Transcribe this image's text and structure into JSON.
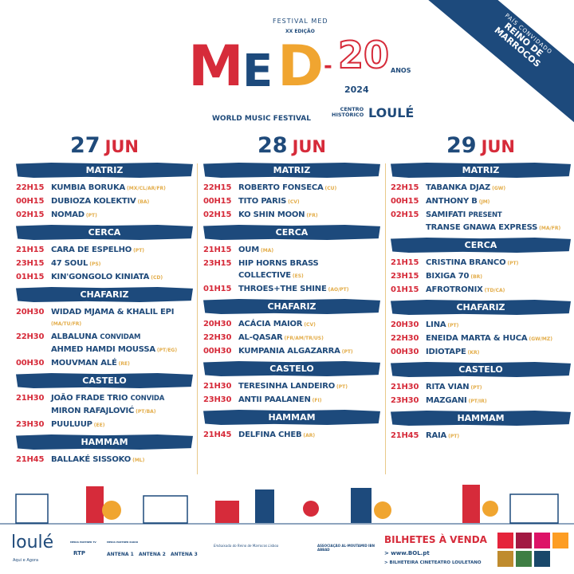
{
  "header": {
    "festival_small": "FESTIVAL MED",
    "edition": "XX EDIÇÃO",
    "logo_letters": [
      "M",
      "E",
      "D"
    ],
    "logo_dash": "-",
    "subtitle": "WORLD MUSIC FESTIVAL",
    "anniversary": "20",
    "anos": "ANOS",
    "year": "2024",
    "centro": "CENTRO",
    "historico": "HISTÓRICO",
    "city": "LOULÉ"
  },
  "ribbon": {
    "label": "PAÍS CONVIDADO",
    "line1": "REINO DE",
    "line2": "MARROCOS"
  },
  "colors": {
    "navy": "#1d4a7c",
    "red": "#d62b3a",
    "orange": "#f0a530",
    "country": "#e3ad4a"
  },
  "days": [
    {
      "num": "27",
      "month": "JUN",
      "venues": [
        {
          "name": "MATRIZ",
          "acts": [
            {
              "time": "22H15",
              "artist": "KUMBIA BORUKA",
              "country": "(MX/CL/AR/FR)"
            },
            {
              "time": "00H15",
              "artist": "DUBIOZA KOLEKTIV",
              "country": "(BA)"
            },
            {
              "time": "02H15",
              "artist": "NOMAD",
              "country": "(PT)"
            }
          ]
        },
        {
          "name": "CERCA",
          "acts": [
            {
              "time": "21H15",
              "artist": "CARA DE ESPELHO",
              "country": "(PT)"
            },
            {
              "time": "23H15",
              "artist": "47 SOUL",
              "country": "(PS)"
            },
            {
              "time": "01H15",
              "artist": "KIN'GONGOLO KINIATA",
              "country": "(CD)"
            }
          ]
        },
        {
          "name": "CHAFARIZ",
          "acts": [
            {
              "time": "20H30",
              "artist": "WIDAD MJAMA & KHALIL EPI",
              "country": "(MA/TU/FR)"
            },
            {
              "time": "22H30",
              "artist": "ALBALUNA",
              "connector": "CONVIDAM",
              "artist2": "AHMED HAMDI MOUSSA",
              "country": "(PT/EG)"
            },
            {
              "time": "00H30",
              "artist": "MOUVMAN ALÉ",
              "country": "(RE)"
            }
          ]
        },
        {
          "name": "CASTELO",
          "acts": [
            {
              "time": "21H30",
              "artist": "JOÃO FRADE TRIO",
              "connector": "CONVIDA",
              "artist2": "MIRON RAFAJLOVIĆ",
              "country": "(PT/BA)"
            },
            {
              "time": "23H30",
              "artist": "PUULUUP",
              "country": "(EE)"
            }
          ]
        },
        {
          "name": "HAMMAM",
          "acts": [
            {
              "time": "21H45",
              "artist": "BALLAKÉ SISSOKO",
              "country": "(ML)"
            }
          ]
        }
      ]
    },
    {
      "num": "28",
      "month": "JUN",
      "venues": [
        {
          "name": "MATRIZ",
          "acts": [
            {
              "time": "22H15",
              "artist": "ROBERTO FONSECA",
              "country": "(CU)"
            },
            {
              "time": "00H15",
              "artist": "TITO PARIS",
              "country": "(CV)"
            },
            {
              "time": "02H15",
              "artist": "KO SHIN MOON",
              "country": "(FR)"
            }
          ]
        },
        {
          "name": "CERCA",
          "acts": [
            {
              "time": "21H15",
              "artist": "OUM",
              "country": "(MA)"
            },
            {
              "time": "23H15",
              "artist": "HIP HORNS BRASS",
              "artist2": "COLLECTIVE",
              "country": "(ES)"
            },
            {
              "time": "01H15",
              "artist": "THROES+THE SHINE",
              "country": "(AO/PT)"
            }
          ]
        },
        {
          "name": "CHAFARIZ",
          "acts": [
            {
              "time": "20H30",
              "artist": "ACÁCIA MAIOR",
              "country": "(CV)"
            },
            {
              "time": "22H30",
              "artist": "AL-QASAR",
              "country": "(FR/AM/TR/US)"
            },
            {
              "time": "00H30",
              "artist": "KUMPANIA ALGAZARRA",
              "country": "(PT)"
            }
          ]
        },
        {
          "name": "CASTELO",
          "acts": [
            {
              "time": "21H30",
              "artist": "TERESINHA LANDEIRO",
              "country": "(PT)"
            },
            {
              "time": "23H30",
              "artist": "ANTII PAALANEN",
              "country": "(FI)"
            }
          ]
        },
        {
          "name": "HAMMAM",
          "acts": [
            {
              "time": "21H45",
              "artist": "DELFINA CHEB",
              "country": "(AR)"
            }
          ]
        }
      ]
    },
    {
      "num": "29",
      "month": "JUN",
      "venues": [
        {
          "name": "MATRIZ",
          "acts": [
            {
              "time": "22H15",
              "artist": "TABANKA DJAZ",
              "country": "(GW)"
            },
            {
              "time": "00H15",
              "artist": "ANTHONY B",
              "country": "(JM)"
            },
            {
              "time": "02H15",
              "artist": "SAMIFATI",
              "connector": "PRESENT",
              "artist2": "TRANSE GNAWA EXPRESS",
              "country": "(MA/FR)"
            }
          ]
        },
        {
          "name": "CERCA",
          "acts": [
            {
              "time": "21H15",
              "artist": "CRISTINA BRANCO",
              "country": "(PT)"
            },
            {
              "time": "23H15",
              "artist": "BIXIGA 70",
              "country": "(BR)"
            },
            {
              "time": "01H15",
              "artist": "AFROTRONIX",
              "country": "(TD/CA)"
            }
          ]
        },
        {
          "name": "CHAFARIZ",
          "acts": [
            {
              "time": "20H30",
              "artist": "LINA",
              "country": "(PT)"
            },
            {
              "time": "22H30",
              "artist": "ENEIDA MARTA & HUCA",
              "country": "(GW/MZ)"
            },
            {
              "time": "00H30",
              "artist": "IDIOTAPE",
              "country": "(KR)"
            }
          ]
        },
        {
          "name": "CASTELO",
          "acts": [
            {
              "time": "21H30",
              "artist": "RITA VIAN",
              "country": "(PT)"
            },
            {
              "time": "23H30",
              "artist": "MAZGANI",
              "country": "(PT/IR)"
            }
          ]
        },
        {
          "name": "HAMMAM",
          "acts": [
            {
              "time": "21H45",
              "artist": "RAIA",
              "country": "(PT)"
            }
          ]
        }
      ]
    }
  ],
  "footer": {
    "loule_logo": "loulé",
    "loule_tagline": "Aqui e Agora",
    "media_tv": "MEDIA PARTNER TV",
    "rtp": "RTP",
    "media_radio": "MEDIA PARTNER RADIO",
    "antenas": [
      "ANTENA 1",
      "ANTENA 2",
      "ANTENA 3"
    ],
    "embassy": "Embaixada do Reino de Marrocos Lisboa",
    "association": "ASSOCIAÇÃO AL-MOUTAMID IBN ABBAD",
    "tickets_title": "BILHETES À VENDA",
    "ticket_site": "> www.BOL.pt",
    "ticket_office": "> BILHETEIRA CINETEATRO LOULETANO",
    "sdg_colors": [
      "#e5243b",
      "#a21942",
      "#dd1367",
      "#fd9d24",
      "#bf8b2e",
      "#3f7e44",
      "#19486a"
    ]
  }
}
